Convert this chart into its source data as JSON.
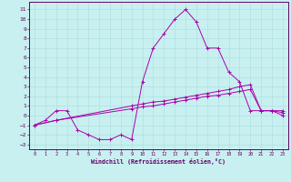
{
  "bg_color": "#c8f0f0",
  "line_color": "#aa00aa",
  "xlabel": "Windchill (Refroidissement éolien,°C)",
  "x_ticks": [
    0,
    1,
    2,
    3,
    4,
    5,
    6,
    7,
    8,
    9,
    10,
    11,
    12,
    13,
    14,
    15,
    16,
    17,
    18,
    19,
    20,
    21,
    22,
    23
  ],
  "y_ticks": [
    -3,
    -2,
    -1,
    0,
    1,
    2,
    3,
    4,
    5,
    6,
    7,
    8,
    9,
    10,
    11
  ],
  "ylim": [
    -3.5,
    11.8
  ],
  "xlim": [
    -0.5,
    23.5
  ],
  "line1_x": [
    0,
    1,
    2,
    3,
    4,
    5,
    6,
    7,
    8,
    9,
    10,
    11,
    12,
    13,
    14,
    15,
    16,
    17,
    18,
    19,
    20,
    21,
    22,
    23
  ],
  "line1_y": [
    -1,
    -0.5,
    0.5,
    0.5,
    -1.5,
    -2.0,
    -2.5,
    -2.5,
    -2.0,
    -2.5,
    3.5,
    7.0,
    8.5,
    10.0,
    11.0,
    9.7,
    7.0,
    7.0,
    4.5,
    3.5,
    0.5,
    0.5,
    0.5,
    0.0
  ],
  "line2_x": [
    0,
    2,
    9,
    10,
    11,
    12,
    13,
    14,
    15,
    16,
    17,
    18,
    19,
    20,
    21,
    22,
    23
  ],
  "line2_y": [
    -1,
    -0.5,
    1.0,
    1.2,
    1.4,
    1.5,
    1.7,
    1.9,
    2.1,
    2.3,
    2.5,
    2.7,
    3.0,
    3.2,
    0.5,
    0.5,
    0.5
  ],
  "line3_x": [
    0,
    2,
    9,
    10,
    11,
    12,
    13,
    14,
    15,
    16,
    17,
    18,
    19,
    20,
    21,
    22,
    23
  ],
  "line3_y": [
    -1,
    -0.5,
    0.7,
    0.9,
    1.0,
    1.2,
    1.4,
    1.6,
    1.8,
    2.0,
    2.1,
    2.3,
    2.5,
    2.7,
    0.5,
    0.5,
    0.3
  ]
}
